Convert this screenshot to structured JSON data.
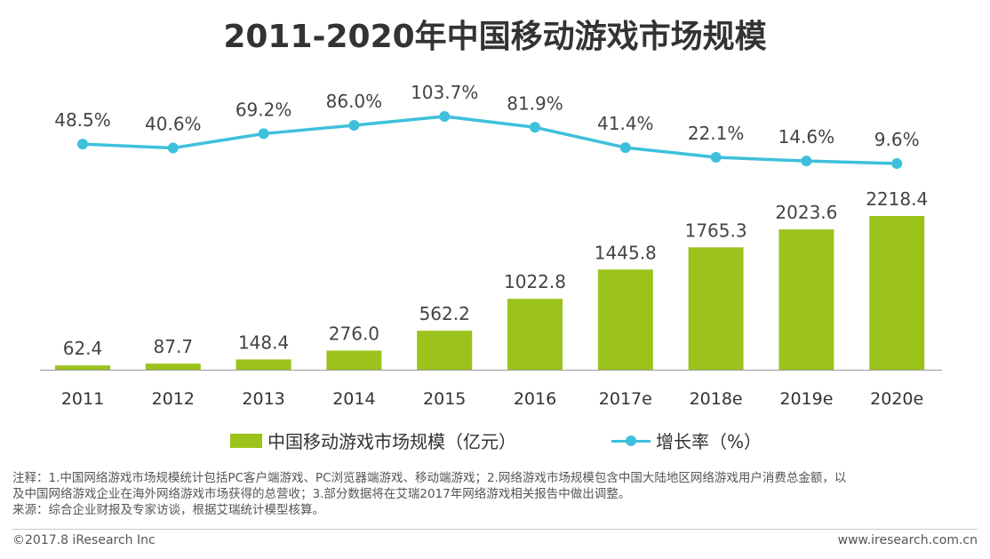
{
  "title": "2011-2020年中国移动游戏市场规模",
  "chart_data": {
    "type": "bar",
    "categories": [
      "2011",
      "2012",
      "2013",
      "2014",
      "2015",
      "2016",
      "2017e",
      "2018e",
      "2019e",
      "2020e"
    ],
    "series": [
      {
        "name": "中国移动游戏市场规模（亿元）",
        "type": "bar",
        "color": "#9bc31c",
        "values": [
          62.4,
          87.7,
          148.4,
          276.0,
          562.2,
          1022.8,
          1445.8,
          1765.3,
          2023.6,
          2218.4
        ],
        "labels": [
          "62.4",
          "87.7",
          "148.4",
          "276.0",
          "562.2",
          "1022.8",
          "1445.8",
          "1765.3",
          "2023.6",
          "2218.4"
        ]
      },
      {
        "name": "增长率（%）",
        "type": "line",
        "color": "#3ec0dc",
        "values": [
          48.5,
          40.6,
          69.2,
          86.0,
          103.7,
          81.9,
          41.4,
          22.1,
          14.6,
          9.6
        ],
        "labels": [
          "48.5%",
          "40.6%",
          "69.2%",
          "86.0%",
          "103.7%",
          "81.9%",
          "41.4%",
          "22.1%",
          "14.6%",
          "9.6%"
        ]
      }
    ],
    "legend_position": "bottom",
    "grid": false
  },
  "legend": {
    "bar_label": "中国移动游戏市场规模（亿元）",
    "line_label": "增长率（%）"
  },
  "notes": {
    "line1": "注释：1.中国网络游戏市场规模统计包括PC客户端游戏、PC浏览器端游戏、移动端游戏；2.网络游戏市场规模包含中国大陆地区网络游戏用户消费总金额，以",
    "line2": "及中国网络游戏企业在海外网络游戏市场获得的总营收；3.部分数据将在艾瑞2017年网络游戏相关报告中做出调整。",
    "line3": "来源：综合企业财报及专家访谈，根据艾瑞统计模型核算。"
  },
  "footer": {
    "copyright": "©2017.8 iResearch Inc",
    "website": "www.iresearch.com.cn"
  }
}
